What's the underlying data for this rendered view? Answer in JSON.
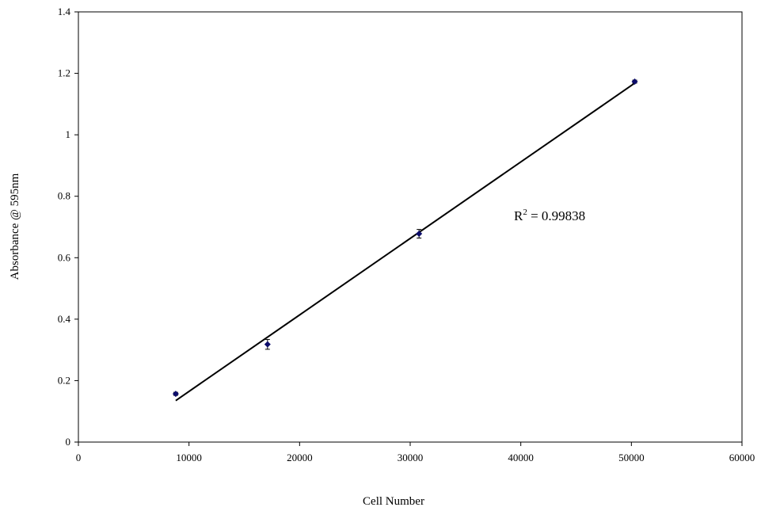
{
  "chart_data": {
    "type": "scatter",
    "title": "",
    "xlabel": "Cell Number",
    "ylabel": "Absorbance @ 595nm",
    "xlim": [
      0,
      60000
    ],
    "ylim": [
      0,
      1.4
    ],
    "xticks": [
      "0",
      "10000",
      "20000",
      "30000",
      "40000",
      "50000",
      "60000"
    ],
    "yticks": [
      "0",
      "0.2",
      "0.4",
      "0.6",
      "0.8",
      "1",
      "1.2",
      "1.4"
    ],
    "grid": false,
    "series": [
      {
        "x": [
          8800,
          17100,
          30800,
          50300
        ],
        "y": [
          0.157,
          0.318,
          0.678,
          1.173
        ],
        "error": [
          0.005,
          0.016,
          0.014,
          0.005
        ]
      }
    ],
    "trendline": {
      "type": "linear",
      "x": [
        8800,
        50300
      ],
      "y": [
        0.135,
        1.168
      ]
    },
    "annotation": {
      "r_label": "R",
      "r_exponent": "2",
      "r_value": " = 0.99838"
    },
    "colors": {
      "marker": "#0d0d6b",
      "trendline": "#000000",
      "axis": "#000000"
    }
  }
}
